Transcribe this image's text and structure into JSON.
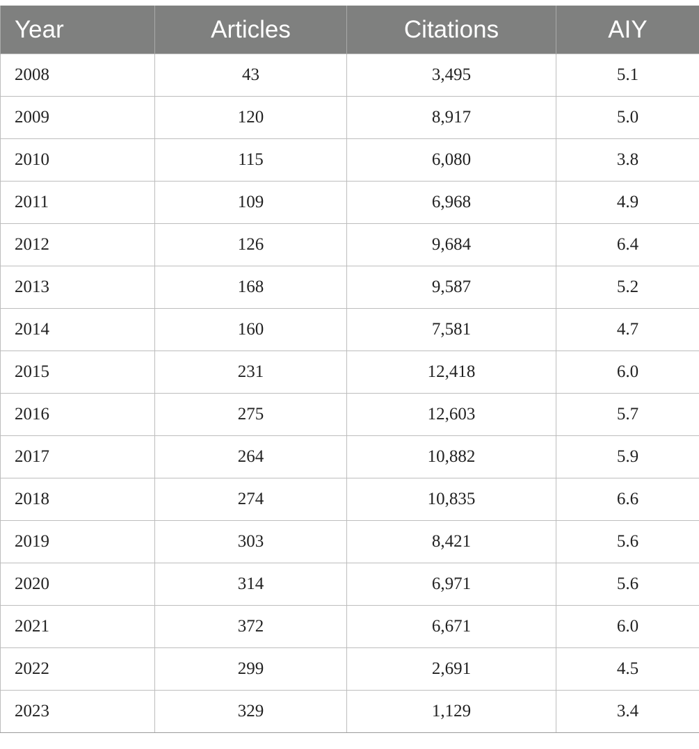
{
  "table": {
    "headers": [
      "Year",
      "Articles",
      "Citations",
      "AIY"
    ],
    "rows": [
      [
        "2008",
        "43",
        "3,495",
        "5.1"
      ],
      [
        "2009",
        "120",
        "8,917",
        "5.0"
      ],
      [
        "2010",
        "115",
        "6,080",
        "3.8"
      ],
      [
        "2011",
        "109",
        "6,968",
        "4.9"
      ],
      [
        "2012",
        "126",
        "9,684",
        "6.4"
      ],
      [
        "2013",
        "168",
        "9,587",
        "5.2"
      ],
      [
        "2014",
        "160",
        "7,581",
        "4.7"
      ],
      [
        "2015",
        "231",
        "12,418",
        "6.0"
      ],
      [
        "2016",
        "275",
        "12,603",
        "5.7"
      ],
      [
        "2017",
        "264",
        "10,882",
        "5.9"
      ],
      [
        "2018",
        "274",
        "10,835",
        "6.6"
      ],
      [
        "2019",
        "303",
        "8,421",
        "5.6"
      ],
      [
        "2020",
        "314",
        "6,971",
        "5.6"
      ],
      [
        "2021",
        "372",
        "6,671",
        "6.0"
      ],
      [
        "2022",
        "299",
        "2,691",
        "4.5"
      ],
      [
        "2023",
        "329",
        "1,129",
        "3.4"
      ]
    ]
  },
  "colors": {
    "header_background": "#7f807f",
    "header_text": "#ffffff",
    "grid_line": "#bdbdbd"
  }
}
